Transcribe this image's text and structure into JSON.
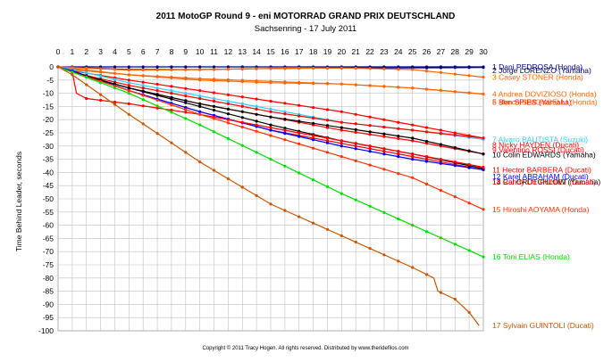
{
  "chart_data": {
    "type": "line",
    "title": "2011 MotoGP Round 9 - eni MOTORRAD GRAND PRIX DEUTSCHLAND",
    "subtitle": "Sachsenring - 17 July 2011",
    "ylabel": "Time Behind Leader, seconds",
    "copyright": "Copyright © 2011 Tracy Hogen. All rights reserved. Distributed by www.theridefilos.com",
    "x_ticks": [
      0,
      1,
      2,
      3,
      4,
      5,
      6,
      7,
      8,
      9,
      10,
      11,
      12,
      13,
      14,
      15,
      16,
      17,
      18,
      19,
      20,
      21,
      22,
      23,
      24,
      25,
      26,
      27,
      28,
      29,
      30
    ],
    "xlim": [
      0,
      30
    ],
    "ylim": [
      -100,
      0
    ],
    "y_ticks": [
      0,
      -5,
      -10,
      -15,
      -20,
      -25,
      -30,
      -35,
      -40,
      -45,
      -50,
      -55,
      -60,
      -65,
      -70,
      -75,
      -80,
      -85,
      -90,
      -95,
      -100
    ],
    "x_axis_position": "top",
    "grid": true,
    "series": [
      {
        "name": "1 Dani PEDROSA (Honda)",
        "color": "#000080",
        "label_y": 0,
        "points": [
          [
            0,
            0
          ],
          [
            30,
            0
          ]
        ]
      },
      {
        "name": "2 Jorge LORENZO (Yamaha)",
        "color": "#000080",
        "label_y": -1.3,
        "points": [
          [
            0,
            0
          ],
          [
            5,
            -1
          ],
          [
            10,
            -1
          ],
          [
            15,
            -0.6
          ],
          [
            20,
            -0.4
          ],
          [
            25,
            -0.4
          ],
          [
            30,
            -0.2
          ]
        ]
      },
      {
        "name": "3 Casey STONER (Honda)",
        "color": "#ff6600",
        "label_y": -3.9,
        "points": [
          [
            0,
            0
          ],
          [
            5,
            -1.2
          ],
          [
            10,
            -1
          ],
          [
            15,
            -0.6
          ],
          [
            20,
            -0.4
          ],
          [
            25,
            -1
          ],
          [
            30,
            -3.9
          ]
        ]
      },
      {
        "name": "4 Andrea DOVIZIOSO (Honda)",
        "color": "#ff6600",
        "label_y": -10.3,
        "points": [
          [
            0,
            0
          ],
          [
            5,
            -3
          ],
          [
            10,
            -5
          ],
          [
            15,
            -6
          ],
          [
            20,
            -6.5
          ],
          [
            25,
            -8
          ],
          [
            30,
            -10.3
          ]
        ]
      },
      {
        "name": "5 Ben SPIES (Yamaha)",
        "color": "#ff0000",
        "label_y": -13.3,
        "points": [
          [
            0,
            0
          ],
          [
            1,
            -1.5
          ],
          [
            5,
            -5
          ],
          [
            10,
            -9
          ],
          [
            15,
            -13
          ],
          [
            20,
            -17
          ],
          [
            25,
            -22
          ],
          [
            30,
            -27
          ]
        ]
      },
      {
        "name": "6 Marco SIMONCELLI (Honda)",
        "color": "#ff6600",
        "label_y": -13.3,
        "points": [
          [
            0,
            0
          ],
          [
            1,
            -1
          ],
          [
            5,
            -3
          ],
          [
            10,
            -4.5
          ],
          [
            15,
            -5.5
          ],
          [
            20,
            -6.5
          ],
          [
            25,
            -8
          ],
          [
            30,
            -10.3
          ]
        ]
      },
      {
        "name": "7 Alvaro BAUTISTA (Suzuki)",
        "color": "#33ccff",
        "label_y": -27.5,
        "points": [
          [
            0,
            0
          ],
          [
            1,
            -1
          ],
          [
            5,
            -6
          ],
          [
            10,
            -11
          ],
          [
            15,
            -16
          ],
          [
            20,
            -21
          ],
          [
            25,
            -24
          ],
          [
            30,
            -27.5
          ]
        ]
      },
      {
        "name": "8 Nicky HAYDEN (Ducati)",
        "color": "#ff0000",
        "label_y": -29.5,
        "points": [
          [
            0,
            0
          ],
          [
            1,
            -2
          ],
          [
            5,
            -7
          ],
          [
            10,
            -12
          ],
          [
            15,
            -17
          ],
          [
            20,
            -21
          ],
          [
            25,
            -24
          ],
          [
            30,
            -27
          ]
        ]
      },
      {
        "name": "9 Valentino ROSSI (Ducati)",
        "color": "#ff0000",
        "label_y": -31.5,
        "points": [
          [
            0,
            0
          ],
          [
            1,
            -2
          ],
          [
            5,
            -8
          ],
          [
            10,
            -14
          ],
          [
            15,
            -19
          ],
          [
            20,
            -24
          ],
          [
            25,
            -28
          ],
          [
            30,
            -33
          ]
        ]
      },
      {
        "name": "10 Colin EDWARDS (Yamaha)",
        "color": "#000000",
        "label_y": -33.3,
        "points": [
          [
            0,
            0
          ],
          [
            1,
            -2
          ],
          [
            5,
            -8
          ],
          [
            10,
            -14
          ],
          [
            15,
            -19
          ],
          [
            20,
            -23
          ],
          [
            25,
            -27
          ],
          [
            30,
            -33
          ]
        ]
      },
      {
        "name": "11 Hector BARBERA (Ducati)",
        "color": "#ff0000",
        "label_y": -39,
        "points": [
          [
            0,
            0
          ],
          [
            1,
            -1.5
          ],
          [
            5,
            -9
          ],
          [
            10,
            -17
          ],
          [
            15,
            -24
          ],
          [
            20,
            -29
          ],
          [
            25,
            -34
          ],
          [
            30,
            -39
          ]
        ]
      },
      {
        "name": "12 Karel ABRAHAM (Ducati)",
        "color": "#0000ff",
        "label_y": -41.5,
        "points": [
          [
            0,
            0
          ],
          [
            1,
            -1.5
          ],
          [
            5,
            -9
          ],
          [
            10,
            -17
          ],
          [
            15,
            -24
          ],
          [
            20,
            -30
          ],
          [
            25,
            -35
          ],
          [
            30,
            -39
          ]
        ]
      },
      {
        "name": "13 Cal CRUTCHLOW (Yamaha)",
        "color": "#000000",
        "label_y": -43.5,
        "points": [
          [
            0,
            0
          ],
          [
            1,
            -2
          ],
          [
            5,
            -8
          ],
          [
            10,
            -15
          ],
          [
            15,
            -22
          ],
          [
            20,
            -28
          ],
          [
            25,
            -33
          ],
          [
            30,
            -38.5
          ]
        ]
      },
      {
        "name": "14 Randy DE PUNIET (Ducati)",
        "color": "#ff0000",
        "label_y": -43.5,
        "points": [
          [
            0,
            0
          ],
          [
            1,
            -2
          ],
          [
            1.3,
            -10
          ],
          [
            2,
            -12
          ],
          [
            5,
            -14
          ],
          [
            10,
            -18
          ],
          [
            15,
            -23
          ],
          [
            20,
            -28
          ],
          [
            25,
            -33
          ],
          [
            30,
            -38
          ]
        ]
      },
      {
        "name": "15 Hiroshi AOYAMA (Honda)",
        "color": "#ff3300",
        "label_y": -54,
        "points": [
          [
            0,
            0
          ],
          [
            1,
            -2
          ],
          [
            5,
            -9
          ],
          [
            10,
            -18
          ],
          [
            15,
            -26
          ],
          [
            20,
            -34
          ],
          [
            25,
            -42
          ],
          [
            30,
            -54
          ]
        ]
      },
      {
        "name": "16 Toni ELIAS (Honda)",
        "color": "#00dd00",
        "label_y": -72,
        "points": [
          [
            0,
            0
          ],
          [
            1,
            -2
          ],
          [
            5,
            -10
          ],
          [
            10,
            -22
          ],
          [
            15,
            -35
          ],
          [
            20,
            -48
          ],
          [
            25,
            -60
          ],
          [
            30,
            -72
          ]
        ]
      },
      {
        "name": "17 Sylvain GUINTOLI (Ducati)",
        "color": "#cc5500",
        "label_y": -98,
        "points": [
          [
            0,
            0
          ],
          [
            1,
            -3
          ],
          [
            5,
            -18
          ],
          [
            10,
            -36
          ],
          [
            15,
            -52
          ],
          [
            20,
            -64
          ],
          [
            25,
            -76
          ],
          [
            26.5,
            -80
          ],
          [
            26.8,
            -85
          ],
          [
            28,
            -88
          ],
          [
            29,
            -93
          ],
          [
            29.7,
            -98
          ]
        ]
      }
    ]
  }
}
